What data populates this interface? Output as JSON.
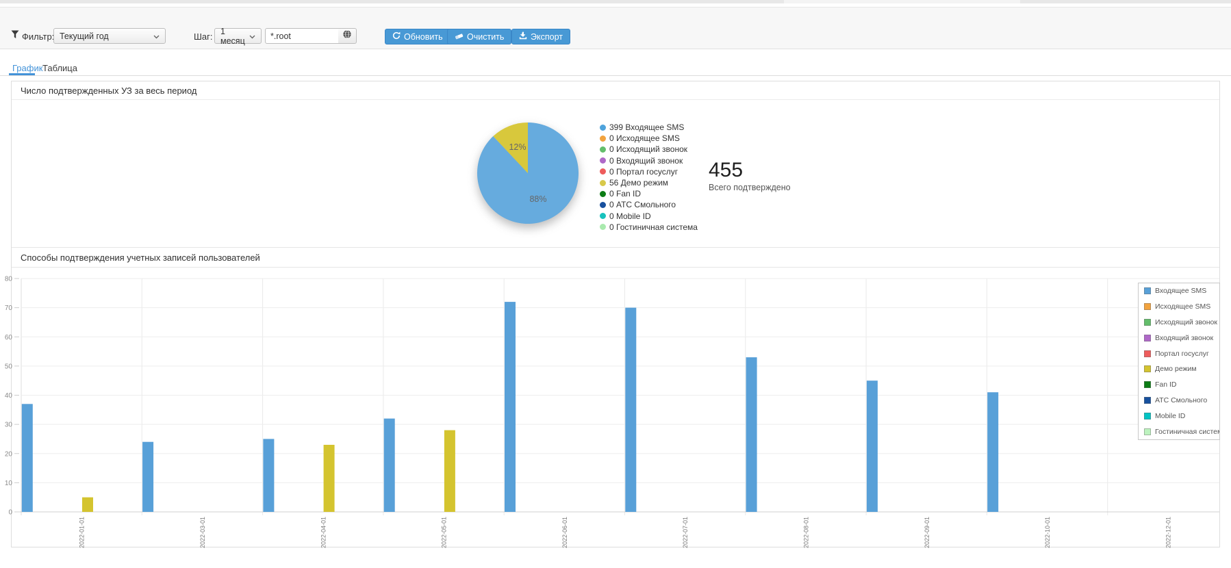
{
  "toolbar": {
    "filter_label": "Фильтр:",
    "filter_value": "Текущий год",
    "step_label": "Шаг:",
    "step_value": "1 месяц",
    "pattern_value": "*.root",
    "refresh_label": "Обновить",
    "clear_label": "Очистить",
    "export_label": "Экспорт"
  },
  "tabs": {
    "graph_label": "График",
    "table_label": "Таблица"
  },
  "pie_section": {
    "title": "Число подтвержденных УЗ за весь период",
    "total_value": "455",
    "total_caption": "Всего подтверждено"
  },
  "bar_section": {
    "title": "Способы подтверждения учетных записей пользователей"
  },
  "colors": {
    "accent_button": "#4899d5",
    "tab_active": "#4393d9",
    "bar_blue": "#58a0d8",
    "bar_yellow": "#d4c42f",
    "pie_blue": "#66abde",
    "pie_yellow": "#d8c83c"
  },
  "chart_data": [
    {
      "type": "pie",
      "title": "Число подтвержденных УЗ за весь период",
      "total": 455,
      "slices": [
        {
          "label": "Входящее SMS",
          "pct": 88,
          "pct_label": "88%",
          "color": "#66abde"
        },
        {
          "label": "Демо режим",
          "pct": 12,
          "pct_label": "12%",
          "color": "#d8c83c"
        }
      ],
      "legend": [
        {
          "label": "Входящее SMS",
          "value": 399,
          "color": "#4ea3dc"
        },
        {
          "label": "Исходящее SMS",
          "value": 0,
          "color": "#f2a33e"
        },
        {
          "label": "Исходящий звонок",
          "value": 0,
          "color": "#63be6b"
        },
        {
          "label": "Входящий звонок",
          "value": 0,
          "color": "#af68c8"
        },
        {
          "label": "Портал госуслуг",
          "value": 0,
          "color": "#ee5c5c"
        },
        {
          "label": "Демо режим",
          "value": 56,
          "color": "#d8c94a"
        },
        {
          "label": "Fan ID",
          "value": 0,
          "color": "#0b7c15"
        },
        {
          "label": "АТС Смольного",
          "value": 0,
          "color": "#17509e"
        },
        {
          "label": "Mobile ID",
          "value": 0,
          "color": "#17c2bd"
        },
        {
          "label": "Гостиничная система",
          "value": 0,
          "color": "#a9eaae"
        }
      ]
    },
    {
      "type": "bar",
      "title": "Способы подтверждения учетных записей пользователей",
      "categories": [
        "2022-01-01",
        "2022-03-01",
        "2022-04-01",
        "2022-05-01",
        "2022-06-01",
        "2022-07-01",
        "2022-08-01",
        "2022-09-01",
        "2022-10-01",
        "2022-12-01"
      ],
      "ylim": [
        0,
        80
      ],
      "yticks": [
        0,
        10,
        20,
        30,
        40,
        50,
        60,
        70,
        80
      ],
      "grid": true,
      "legend_position": "right",
      "series": [
        {
          "name": "Входящее SMS",
          "color": "#58a0d8",
          "values": [
            37,
            24,
            25,
            32,
            72,
            70,
            53,
            45,
            41,
            0
          ]
        },
        {
          "name": "Исходящее SMS",
          "color": "#f2a33e",
          "values": [
            0,
            0,
            0,
            0,
            0,
            0,
            0,
            0,
            0,
            0
          ]
        },
        {
          "name": "Исходящий звонок",
          "color": "#63be6b",
          "values": [
            0,
            0,
            0,
            0,
            0,
            0,
            0,
            0,
            0,
            0
          ]
        },
        {
          "name": "Входящий звонок",
          "color": "#af68c8",
          "values": [
            0,
            0,
            0,
            0,
            0,
            0,
            0,
            0,
            0,
            0
          ]
        },
        {
          "name": "Портал госуслуг",
          "color": "#ee5c5c",
          "values": [
            0,
            0,
            0,
            0,
            0,
            0,
            0,
            0,
            0,
            0
          ]
        },
        {
          "name": "Демо режим",
          "color": "#d4c42f",
          "values": [
            5,
            0,
            23,
            28,
            0,
            0,
            0,
            0,
            0,
            0
          ]
        },
        {
          "name": "Fan ID",
          "color": "#0b7c15",
          "values": [
            0,
            0,
            0,
            0,
            0,
            0,
            0,
            0,
            0,
            0
          ]
        },
        {
          "name": "АТС Смольного",
          "color": "#17509e",
          "values": [
            0,
            0,
            0,
            0,
            0,
            0,
            0,
            0,
            0,
            0
          ]
        },
        {
          "name": "Mobile ID",
          "color": "#00c4c4",
          "values": [
            0,
            0,
            0,
            0,
            0,
            0,
            0,
            0,
            0,
            0
          ]
        },
        {
          "name": "Гостиничная система",
          "color": "#bdf3bf",
          "values": [
            0,
            0,
            0,
            0,
            0,
            0,
            0,
            0,
            0,
            0
          ]
        }
      ]
    }
  ]
}
